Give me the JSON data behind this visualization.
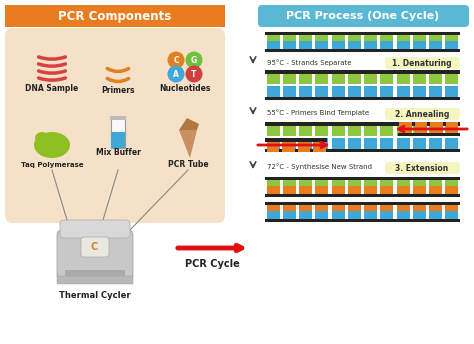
{
  "bg_color": "#ffffff",
  "left_header_color": "#e87c1e",
  "right_header_color": "#5bb8d4",
  "left_bg_color": "#f5e0c8",
  "title_left": "PCR Components",
  "title_right": "PCR Process (One Cycle)",
  "step1_label": "1. Denaturing",
  "step2_label": "2. Annealing",
  "step3_label": "3. Extension",
  "step1_temp": "95°C - Strands Separate",
  "step2_temp": "55°C - Primers Bind Template",
  "step3_temp": "72°C - Synthesise New Strand",
  "pcr_cycle_label": "PCR Cycle",
  "thermal_cycler_label": "Thermal Cycler",
  "dna_color": "#d94040",
  "primer_color": "#e08020",
  "nuc_c_color": "#e08020",
  "nuc_g_color": "#70c040",
  "nuc_a_color": "#40a8d8",
  "nuc_t_color": "#d04040",
  "taq_color": "#8dc020",
  "buffer_color": "#40a8d8",
  "tube_color": "#c89060",
  "strand_dark": "#222222",
  "strand_green": "#8dc63f",
  "strand_blue": "#40a8d8",
  "strand_orange": "#e87c1e",
  "arrow_color": "#e01010",
  "step_bg": "#f5f5c0",
  "label_color": "#222222"
}
